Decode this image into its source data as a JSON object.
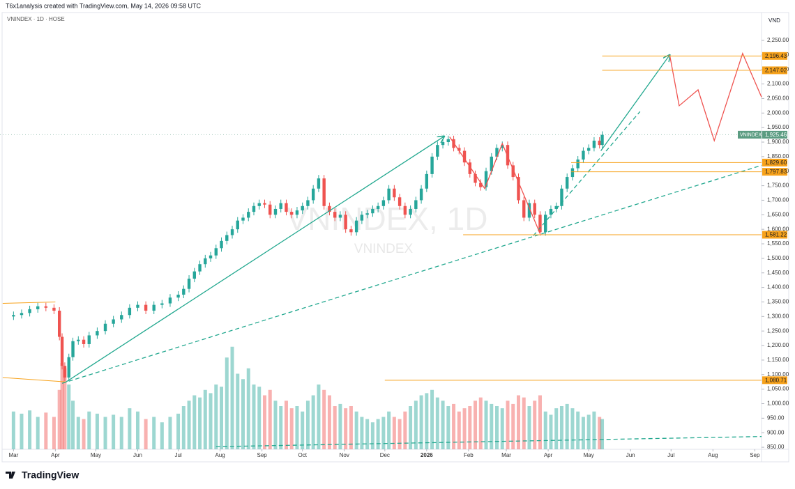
{
  "header": {
    "caption": "T6x1analysis created with TradingView.com, May 14, 2026 09:58 UTC",
    "symbol": "VNINDEX · 1D · HOSE",
    "currency": "VND",
    "watermark": "VNINDEX, 1D",
    "watermark_sub": "VNINDEX",
    "brand": "TradingView"
  },
  "chart_data": {
    "type": "candlestick",
    "x": [
      0,
      6,
      12,
      18,
      24,
      30,
      34,
      36,
      38,
      41,
      44,
      48,
      52,
      56,
      62,
      68,
      74,
      80,
      86,
      92,
      98,
      104,
      110,
      116,
      122,
      126,
      130,
      134,
      138,
      142,
      146,
      150,
      154,
      158,
      162,
      166,
      170,
      174,
      178,
      182,
      186,
      190,
      194,
      198,
      202,
      206,
      210,
      214,
      218,
      222,
      226,
      230,
      234,
      238,
      242,
      246,
      250,
      254,
      258,
      262,
      266,
      270,
      274,
      278,
      282,
      286,
      290,
      294,
      298,
      302,
      306,
      310,
      314,
      318,
      322,
      326,
      330,
      334,
      338,
      342,
      346,
      350,
      354,
      358,
      362,
      366,
      370,
      374,
      378,
      382,
      386,
      390,
      394,
      398,
      402,
      406,
      410,
      414,
      418,
      422,
      426,
      430,
      434,
      436
    ],
    "open": [
      1300,
      1305,
      1312,
      1325,
      1335,
      1330,
      1320,
      1230,
      1130,
      1090,
      1160,
      1215,
      1220,
      1205,
      1235,
      1250,
      1275,
      1290,
      1305,
      1330,
      1340,
      1320,
      1340,
      1345,
      1365,
      1375,
      1395,
      1430,
      1455,
      1480,
      1500,
      1510,
      1535,
      1560,
      1580,
      1600,
      1630,
      1640,
      1660,
      1680,
      1690,
      1685,
      1650,
      1670,
      1690,
      1660,
      1650,
      1665,
      1680,
      1700,
      1740,
      1775,
      1680,
      1660,
      1640,
      1650,
      1600,
      1590,
      1630,
      1650,
      1655,
      1670,
      1680,
      1700,
      1740,
      1710,
      1680,
      1650,
      1670,
      1700,
      1740,
      1790,
      1850,
      1890,
      1900,
      1910,
      1880,
      1870,
      1830,
      1790,
      1760,
      1745,
      1800,
      1850,
      1880,
      1890,
      1820,
      1780,
      1700,
      1640,
      1690,
      1650,
      1590,
      1650,
      1670,
      1680,
      1740,
      1780,
      1810,
      1840,
      1870,
      1880,
      1905,
      1890
    ],
    "high": [
      1317,
      1324,
      1337,
      1347,
      1347,
      1342,
      1332,
      1242,
      1142,
      1172,
      1227,
      1232,
      1232,
      1247,
      1262,
      1287,
      1302,
      1317,
      1342,
      1352,
      1352,
      1352,
      1357,
      1377,
      1387,
      1407,
      1442,
      1467,
      1492,
      1512,
      1522,
      1547,
      1572,
      1592,
      1612,
      1642,
      1652,
      1672,
      1692,
      1702,
      1702,
      1697,
      1682,
      1702,
      1702,
      1672,
      1677,
      1692,
      1712,
      1752,
      1787,
      1787,
      1692,
      1672,
      1662,
      1662,
      1612,
      1642,
      1662,
      1667,
      1682,
      1692,
      1712,
      1752,
      1752,
      1722,
      1692,
      1682,
      1712,
      1752,
      1802,
      1862,
      1902,
      1912,
      1922,
      1922,
      1892,
      1882,
      1842,
      1802,
      1772,
      1812,
      1862,
      1892,
      1902,
      1902,
      1832,
      1792,
      1712,
      1702,
      1702,
      1662,
      1662,
      1682,
      1692,
      1752,
      1792,
      1822,
      1852,
      1882,
      1892,
      1917,
      1917,
      1937
    ],
    "low": [
      1288,
      1293,
      1300,
      1313,
      1318,
      1308,
      1218,
      1118,
      1078,
      1078,
      1148,
      1203,
      1193,
      1193,
      1223,
      1238,
      1263,
      1278,
      1293,
      1318,
      1308,
      1308,
      1328,
      1333,
      1353,
      1363,
      1383,
      1418,
      1443,
      1468,
      1488,
      1498,
      1523,
      1548,
      1568,
      1588,
      1618,
      1628,
      1648,
      1668,
      1673,
      1638,
      1638,
      1658,
      1648,
      1638,
      1638,
      1653,
      1668,
      1688,
      1728,
      1668,
      1648,
      1628,
      1628,
      1588,
      1578,
      1578,
      1618,
      1638,
      1643,
      1658,
      1668,
      1688,
      1698,
      1668,
      1638,
      1638,
      1658,
      1688,
      1728,
      1778,
      1838,
      1878,
      1888,
      1868,
      1858,
      1818,
      1778,
      1748,
      1733,
      1733,
      1788,
      1838,
      1868,
      1808,
      1768,
      1688,
      1628,
      1628,
      1638,
      1578,
      1578,
      1638,
      1658,
      1668,
      1728,
      1768,
      1798,
      1828,
      1858,
      1868,
      1878,
      1878
    ],
    "close": [
      1305,
      1312,
      1325,
      1335,
      1330,
      1320,
      1230,
      1130,
      1090,
      1160,
      1215,
      1220,
      1205,
      1235,
      1250,
      1275,
      1290,
      1305,
      1330,
      1340,
      1320,
      1340,
      1345,
      1365,
      1375,
      1395,
      1430,
      1455,
      1480,
      1500,
      1510,
      1535,
      1560,
      1580,
      1600,
      1630,
      1640,
      1660,
      1680,
      1690,
      1685,
      1650,
      1670,
      1690,
      1660,
      1650,
      1665,
      1680,
      1700,
      1740,
      1775,
      1680,
      1660,
      1640,
      1650,
      1600,
      1590,
      1630,
      1650,
      1655,
      1670,
      1680,
      1700,
      1740,
      1710,
      1680,
      1650,
      1670,
      1700,
      1740,
      1790,
      1850,
      1890,
      1900,
      1910,
      1880,
      1870,
      1830,
      1790,
      1760,
      1745,
      1800,
      1850,
      1880,
      1890,
      1820,
      1780,
      1700,
      1640,
      1690,
      1650,
      1590,
      1650,
      1670,
      1680,
      1740,
      1780,
      1810,
      1840,
      1870,
      1880,
      1905,
      1890,
      1925
    ],
    "volume": [
      35,
      33,
      36,
      30,
      34,
      30,
      55,
      80,
      75,
      60,
      45,
      30,
      28,
      35,
      33,
      30,
      32,
      30,
      38,
      35,
      28,
      30,
      25,
      30,
      33,
      40,
      45,
      50,
      48,
      55,
      52,
      60,
      58,
      85,
      95,
      70,
      65,
      75,
      60,
      58,
      50,
      55,
      45,
      40,
      45,
      38,
      40,
      35,
      45,
      50,
      60,
      55,
      50,
      40,
      42,
      38,
      40,
      35,
      30,
      28,
      25,
      28,
      30,
      35,
      30,
      28,
      35,
      40,
      45,
      50,
      52,
      55,
      48,
      45,
      40,
      42,
      35,
      38,
      40,
      45,
      48,
      45,
      42,
      40,
      38,
      45,
      42,
      50,
      48,
      40,
      45,
      50,
      35,
      32,
      38,
      40,
      42,
      38,
      35,
      30,
      32,
      35,
      30,
      28
    ],
    "volume_lim": [
      0,
      100
    ],
    "up_color": "#26a69a",
    "down_color": "#ef5350",
    "xlim": [
      -10,
      554
    ],
    "ylim": [
      843,
      2341
    ],
    "xticks": [
      {
        "value": 0,
        "label": "Mar"
      },
      {
        "value": 31,
        "label": "Apr"
      },
      {
        "value": 61,
        "label": "May"
      },
      {
        "value": 92,
        "label": "Jun"
      },
      {
        "value": 122,
        "label": "Jul"
      },
      {
        "value": 153,
        "label": "Aug"
      },
      {
        "value": 184,
        "label": "Sep"
      },
      {
        "value": 214,
        "label": "Oct"
      },
      {
        "value": 245,
        "label": "Nov"
      },
      {
        "value": 275,
        "label": "Dec"
      },
      {
        "value": 306,
        "label": "2026"
      },
      {
        "value": 337,
        "label": "Feb"
      },
      {
        "value": 365,
        "label": "Mar"
      },
      {
        "value": 396,
        "label": "Apr"
      },
      {
        "value": 426,
        "label": "May"
      },
      {
        "value": 457,
        "label": "Jun"
      },
      {
        "value": 487,
        "label": "Jul"
      },
      {
        "value": 518,
        "label": "Aug"
      },
      {
        "value": 549,
        "label": "Sep"
      }
    ],
    "yticks": [
      {
        "value": 850,
        "label": "850.00"
      },
      {
        "value": 900,
        "label": "900.00"
      },
      {
        "value": 950,
        "label": "950.00"
      },
      {
        "value": 1000,
        "label": "1,000.00"
      },
      {
        "value": 1050,
        "label": "1,050.00"
      },
      {
        "value": 1100,
        "label": "1,100.00"
      },
      {
        "value": 1150,
        "label": "1,150.00"
      },
      {
        "value": 1200,
        "label": "1,200.00"
      },
      {
        "value": 1250,
        "label": "1,250.00"
      },
      {
        "value": 1300,
        "label": "1,300.00"
      },
      {
        "value": 1350,
        "label": "1,350.00"
      },
      {
        "value": 1400,
        "label": "1,400.00"
      },
      {
        "value": 1450,
        "label": "1,450.00"
      },
      {
        "value": 1500,
        "label": "1,500.00"
      },
      {
        "value": 1550,
        "label": "1,550.00"
      },
      {
        "value": 1600,
        "label": "1,600.00"
      },
      {
        "value": 1650,
        "label": "1,650.00"
      },
      {
        "value": 1700,
        "label": "1,700.00"
      },
      {
        "value": 1750,
        "label": "1,750.00"
      },
      {
        "value": 1800,
        "label": "1,800.00"
      },
      {
        "value": 1850,
        "label": "1,850.00"
      },
      {
        "value": 1900,
        "label": "1,900.00"
      },
      {
        "value": 1950,
        "label": "1,950.00"
      },
      {
        "value": 2000,
        "label": "2,000.00"
      },
      {
        "value": 2050,
        "label": "2,050.00"
      },
      {
        "value": 2100,
        "label": "2,100.00"
      },
      {
        "value": 2150,
        "label": "2,150.00"
      },
      {
        "value": 2200,
        "label": "2,200.00"
      },
      {
        "value": 2250,
        "label": "2,250.00"
      }
    ],
    "last": {
      "name": "VNINDEX",
      "value": 1925.46,
      "label": "1,925.46",
      "color": "#5b9c82"
    },
    "levels": [
      {
        "value": 2196.43,
        "label": "2,196.43",
        "start": 436
      },
      {
        "value": 2147.02,
        "label": "2,147.02",
        "start": 436
      },
      {
        "value": 1829.6,
        "label": "1,829.60",
        "start": 413
      },
      {
        "value": 1797.83,
        "label": "1,797.83",
        "start": 413
      },
      {
        "value": 1581.22,
        "label": "1,581.22",
        "start": 333
      },
      {
        "value": 1080.71,
        "label": "1,080.71",
        "start": 275
      }
    ],
    "level_color": "#f7a21b",
    "drawings": [
      {
        "color": "#f7a21b",
        "style": "solid",
        "arrow": false,
        "points": [
          [
            -8,
            1345
          ],
          [
            31,
            1350
          ]
        ]
      },
      {
        "color": "#f7a21b",
        "style": "solid",
        "arrow": false,
        "points": [
          [
            -8,
            1090
          ],
          [
            39,
            1075
          ]
        ]
      },
      {
        "color": "#22a88f",
        "style": "solid",
        "arrow": true,
        "points": [
          [
            39,
            1075
          ],
          [
            319,
            1920
          ]
        ]
      },
      {
        "color": "#22a88f",
        "style": "dashed",
        "arrow": false,
        "points": [
          [
            36,
            1070
          ],
          [
            554,
            1820
          ]
        ]
      },
      {
        "color": "#22a88f",
        "style": "dashed",
        "arrow": false,
        "points": [
          [
            385,
            1578
          ],
          [
            464,
            2005
          ]
        ]
      },
      {
        "color": "#22a88f",
        "style": "dashed",
        "arrow": false,
        "points": [
          [
            150,
            852
          ],
          [
            554,
            887
          ]
        ]
      },
      {
        "color": "#22a88f",
        "style": "solid",
        "arrow": true,
        "points": [
          [
            435,
            1870
          ],
          [
            486,
            2200
          ]
        ]
      },
      {
        "color": "#ef5350",
        "style": "solid",
        "arrow": false,
        "points": [
          [
            323,
            1918
          ],
          [
            349,
            1740
          ],
          [
            362,
            1895
          ],
          [
            390,
            1585
          ]
        ]
      },
      {
        "color": "#ef5350",
        "style": "solid",
        "arrow": false,
        "points": [
          [
            486,
            2200
          ],
          [
            493,
            2025
          ],
          [
            507,
            2080
          ],
          [
            519,
            1905
          ],
          [
            540,
            2205
          ],
          [
            554,
            2055
          ]
        ]
      }
    ]
  }
}
